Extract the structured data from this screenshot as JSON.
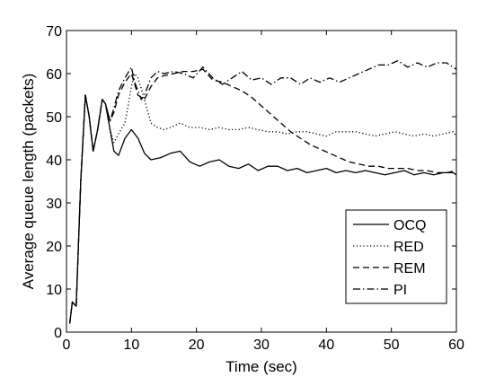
{
  "chart_data": {
    "type": "line",
    "title": "",
    "xlabel": "Time (sec)",
    "ylabel": "Average queue length (packets)",
    "xlim": [
      0,
      60
    ],
    "ylim": [
      0,
      70
    ],
    "xticks": [
      0,
      10,
      20,
      30,
      40,
      50,
      60
    ],
    "yticks": [
      0,
      10,
      20,
      30,
      40,
      50,
      60,
      70
    ],
    "grid": false,
    "legend_position": "bottom-right",
    "series": [
      {
        "name": "OCQ",
        "dash": "solid",
        "x": [
          0.5,
          0.9,
          1.5,
          2.2,
          2.9,
          3.5,
          4.1,
          4.8,
          5.5,
          6.0,
          6.7,
          7.3,
          8.0,
          9.0,
          10.0,
          11.0,
          12.0,
          13.0,
          14.5,
          16.0,
          17.5,
          19.0,
          20.5,
          22.0,
          23.5,
          25.0,
          26.5,
          28.0,
          29.5,
          31.0,
          32.5,
          34.0,
          35.5,
          37.0,
          38.5,
          40.0,
          41.5,
          43.0,
          44.5,
          46.0,
          47.5,
          49.0,
          50.5,
          52.0,
          53.5,
          55.0,
          56.5,
          58.0,
          59.5,
          60.0
        ],
        "y": [
          2,
          7,
          6,
          35,
          55,
          50,
          42,
          47,
          54,
          53,
          47,
          42,
          41,
          45,
          47,
          45,
          41.5,
          40,
          40.5,
          41.5,
          42,
          39.5,
          38.5,
          39.5,
          40,
          38.5,
          38,
          39,
          37.5,
          38.5,
          38.5,
          37.5,
          38,
          37,
          37.5,
          38,
          37,
          37.5,
          37,
          37.5,
          37,
          36.5,
          37,
          37.5,
          36.5,
          37,
          36.5,
          37,
          37,
          36.5
        ]
      },
      {
        "name": "RED",
        "dash": "dotted",
        "x": [
          0.5,
          0.9,
          1.5,
          2.2,
          2.9,
          3.5,
          4.1,
          4.8,
          5.5,
          6.0,
          6.7,
          7.3,
          8.0,
          9.0,
          10.0,
          10.5,
          11.0,
          12.0,
          13.0,
          14.0,
          15.0,
          16.0,
          17.5,
          19.0,
          20.5,
          22.0,
          23.5,
          25.0,
          26.5,
          28.0,
          29.5,
          31.0,
          32.5,
          34.0,
          35.5,
          37.0,
          38.5,
          40.0,
          41.5,
          43.0,
          44.5,
          46.0,
          47.5,
          49.0,
          50.5,
          52.0,
          53.5,
          55.0,
          56.5,
          58.0,
          59.5,
          60.0
        ],
        "y": [
          2,
          7,
          6,
          35,
          55,
          50,
          42,
          47,
          54,
          53,
          47,
          44,
          46,
          48.5,
          57,
          60,
          59,
          54,
          48.5,
          47.5,
          47,
          47.5,
          48.5,
          47.5,
          47.5,
          47,
          47.5,
          47,
          47,
          47.5,
          47,
          46.5,
          46.5,
          46,
          46.5,
          46.5,
          46,
          45.5,
          46.5,
          46.5,
          46.5,
          46,
          45.5,
          46,
          46.5,
          46,
          45.5,
          46,
          45.5,
          46,
          46.5,
          45.5
        ]
      },
      {
        "name": "REM",
        "dash": "dashed",
        "x": [
          0.5,
          0.9,
          1.5,
          2.2,
          2.9,
          3.5,
          4.1,
          4.8,
          5.5,
          6.0,
          6.7,
          7.3,
          8.0,
          9.0,
          10.0,
          11.0,
          12.0,
          13.0,
          14.0,
          15.0,
          16.5,
          18.0,
          19.5,
          21.0,
          22.5,
          24.0,
          25.5,
          27.0,
          28.5,
          30.0,
          31.5,
          33.0,
          34.5,
          36.0,
          37.5,
          39.0,
          40.5,
          42.0,
          43.5,
          45.0,
          46.5,
          48.0,
          49.5,
          51.0,
          52.5,
          54.0,
          55.5,
          57.0,
          58.5,
          60.0
        ],
        "y": [
          2,
          7,
          6,
          35,
          55,
          50,
          42,
          47,
          54,
          53,
          49,
          51,
          55,
          58,
          60,
          55,
          54,
          57,
          59,
          59.5,
          60,
          60.5,
          60.5,
          61,
          58.5,
          58,
          57,
          56,
          54.5,
          52.5,
          50.5,
          48.5,
          46.5,
          45,
          43.5,
          42.5,
          41.5,
          40.5,
          39.5,
          39,
          38.5,
          38.5,
          38,
          38,
          38,
          37.5,
          37.5,
          37,
          37,
          37.5
        ]
      },
      {
        "name": "PI",
        "dash": "dashdot",
        "x": [
          0.5,
          0.9,
          1.5,
          2.2,
          2.9,
          3.5,
          4.1,
          4.8,
          5.5,
          6.0,
          6.7,
          7.3,
          8.0,
          9.0,
          10.0,
          10.5,
          11.0,
          11.5,
          12.0,
          13.0,
          14.0,
          15.0,
          16.5,
          18.0,
          19.5,
          21.0,
          22.5,
          24.0,
          25.5,
          27.0,
          28.5,
          30.0,
          31.5,
          33.0,
          34.5,
          36.0,
          37.5,
          39.0,
          40.5,
          42.0,
          43.5,
          45.0,
          46.5,
          48.0,
          49.5,
          51.0,
          52.5,
          54.0,
          55.5,
          57.0,
          58.5,
          60.0
        ],
        "y": [
          2,
          7,
          6,
          35,
          55,
          50,
          42,
          47,
          54,
          53,
          49,
          52,
          56,
          59,
          61.5,
          58,
          56,
          54,
          55,
          59,
          60.5,
          60,
          60.5,
          60,
          59,
          61.5,
          59,
          57.5,
          59,
          60.5,
          58.5,
          59,
          57.5,
          59,
          59,
          57.5,
          59,
          58,
          59,
          58,
          59,
          60,
          61,
          62,
          62,
          63,
          61.5,
          62.5,
          61.5,
          62.5,
          62.5,
          61
        ]
      }
    ]
  }
}
